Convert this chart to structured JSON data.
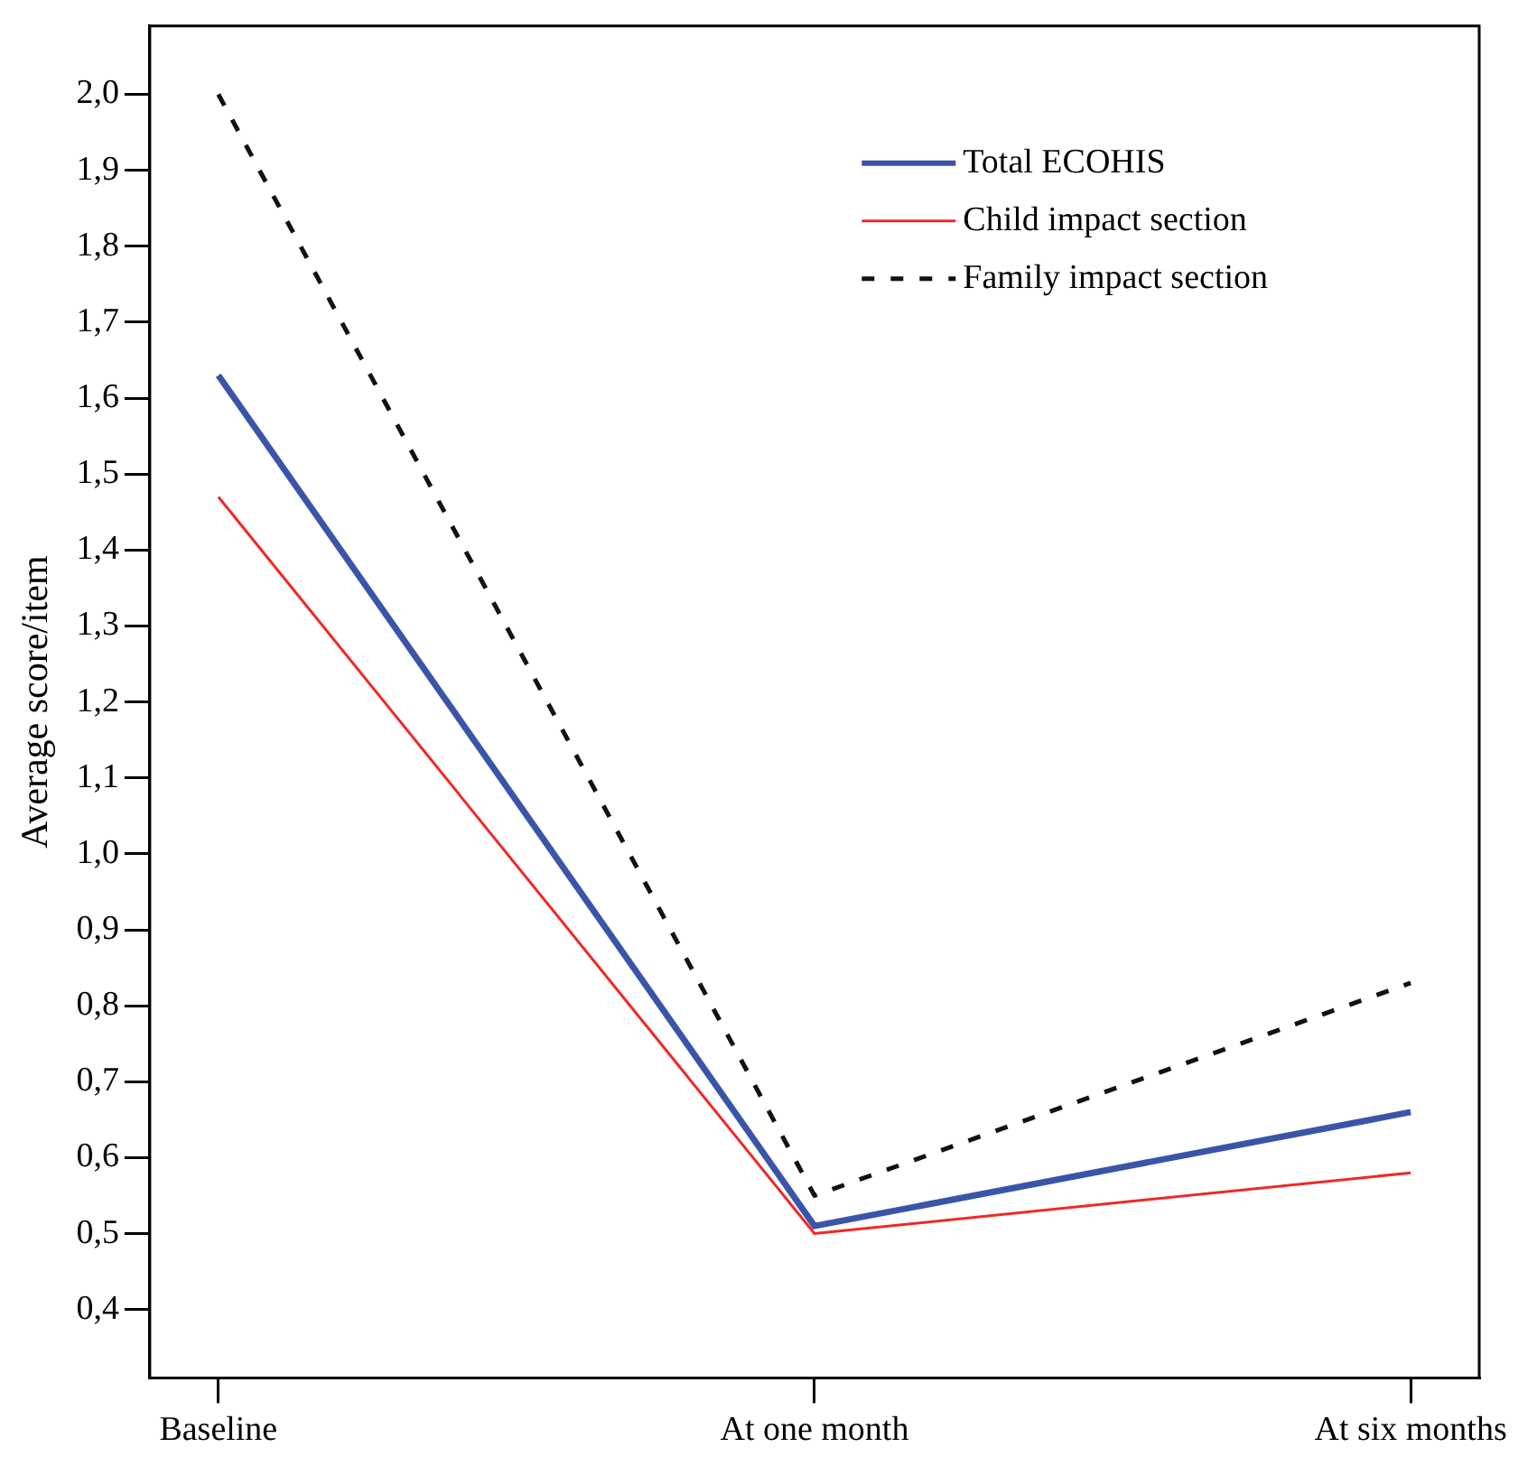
{
  "chart_data": {
    "type": "line",
    "ylabel": "Average score/item",
    "categories": [
      "Baseline",
      "At one month",
      "At six months"
    ],
    "series": [
      {
        "name": "Total ECOHIS",
        "color": "#3a55a8",
        "values": [
          1.63,
          0.51,
          0.66
        ],
        "line_style": "solid"
      },
      {
        "name": "Child impact section",
        "color": "#f02828",
        "values": [
          1.47,
          0.5,
          0.58
        ],
        "line_style": "solid"
      },
      {
        "name": "Family impact section",
        "color": "#111111",
        "values": [
          2.0,
          0.55,
          0.83
        ],
        "line_style": "dashed"
      }
    ],
    "ylim": [
      0.31,
      2.09
    ],
    "yticks": [
      {
        "value": 0.4,
        "label": "0,4"
      },
      {
        "value": 0.5,
        "label": "0,5"
      },
      {
        "value": 0.6,
        "label": "0,6"
      },
      {
        "value": 0.7,
        "label": "0,7"
      },
      {
        "value": 0.8,
        "label": "0,8"
      },
      {
        "value": 0.9,
        "label": "0,9"
      },
      {
        "value": 1.0,
        "label": "1,0"
      },
      {
        "value": 1.1,
        "label": "1,1"
      },
      {
        "value": 1.2,
        "label": "1,2"
      },
      {
        "value": 1.3,
        "label": "1,3"
      },
      {
        "value": 1.4,
        "label": "1,4"
      },
      {
        "value": 1.5,
        "label": "1,5"
      },
      {
        "value": 1.6,
        "label": "1,6"
      },
      {
        "value": 1.7,
        "label": "1,7"
      },
      {
        "value": 1.8,
        "label": "1,8"
      },
      {
        "value": 1.9,
        "label": "1,9"
      },
      {
        "value": 2.0,
        "label": "2,0"
      }
    ],
    "legend": "top right",
    "marker": "none"
  }
}
